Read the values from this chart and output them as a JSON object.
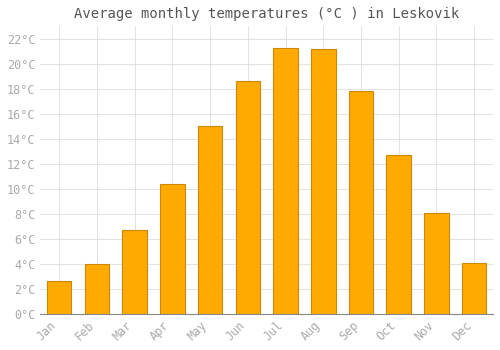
{
  "title": "Average monthly temperatures (°C ) in Leskovik",
  "months": [
    "Jan",
    "Feb",
    "Mar",
    "Apr",
    "May",
    "Jun",
    "Jul",
    "Aug",
    "Sep",
    "Oct",
    "Nov",
    "Dec"
  ],
  "values": [
    2.6,
    4.0,
    6.7,
    10.4,
    15.0,
    18.6,
    21.3,
    21.2,
    17.8,
    12.7,
    8.1,
    4.1
  ],
  "bar_color": "#FFAA00",
  "bar_edge_color": "#CC8800",
  "background_color": "#FFFFFF",
  "grid_color": "#DDDDDD",
  "text_color": "#AAAAAA",
  "title_color": "#555555",
  "ylim": [
    0,
    23
  ],
  "ytick_vals": [
    0,
    2,
    4,
    6,
    8,
    10,
    12,
    14,
    16,
    18,
    20,
    22
  ],
  "title_fontsize": 10,
  "tick_fontsize": 8.5,
  "bar_width": 0.65
}
